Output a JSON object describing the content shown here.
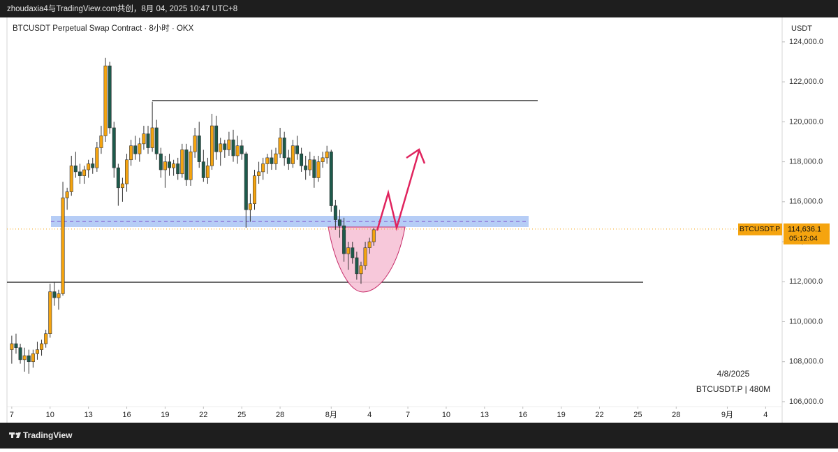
{
  "top_bar": {
    "text": "zhoudaxia4与TradingView.com共创，8月 04, 2025 10:47 UTC+8"
  },
  "footer": {
    "brand": "TradingView"
  },
  "chart_data": {
    "type": "candlestick",
    "title": "BTCUSDT Perpetual Swap Contract · 8小时 · OKX",
    "y_axis_label": "USDT",
    "watermark": [
      "4/8/2025",
      "BTCUSDT.P | 480M"
    ],
    "symbol_tag": "BTCUSDT.P",
    "last_price": {
      "value": 114636.1,
      "label": "114,636.1"
    },
    "countdown": "05:12:04",
    "up_color": "#f5a40f",
    "down_color": "#1d5a4b",
    "xlim": [
      -9,
      1447
    ],
    "xticks": [
      {
        "value": 0,
        "label": "7"
      },
      {
        "value": 72,
        "label": "10"
      },
      {
        "value": 144,
        "label": "13"
      },
      {
        "value": 216,
        "label": "16"
      },
      {
        "value": 288,
        "label": "19"
      },
      {
        "value": 360,
        "label": "22"
      },
      {
        "value": 432,
        "label": "25"
      },
      {
        "value": 504,
        "label": "28"
      },
      {
        "value": 600,
        "label": "8月"
      },
      {
        "value": 672,
        "label": "4"
      },
      {
        "value": 744,
        "label": "7"
      },
      {
        "value": 816,
        "label": "10"
      },
      {
        "value": 888,
        "label": "13"
      },
      {
        "value": 960,
        "label": "16"
      },
      {
        "value": 1032,
        "label": "19"
      },
      {
        "value": 1104,
        "label": "22"
      },
      {
        "value": 1176,
        "label": "25"
      },
      {
        "value": 1248,
        "label": "28"
      },
      {
        "value": 1344,
        "label": "9月"
      },
      {
        "value": 1416,
        "label": "4"
      }
    ],
    "ylim": [
      104950,
      125220
    ],
    "yticks": [
      {
        "value": 106000,
        "label": "106,000.0"
      },
      {
        "value": 108000,
        "label": "108,000.0"
      },
      {
        "value": 110000,
        "label": "110,000.0"
      },
      {
        "value": 112000,
        "label": "112,000.0"
      },
      {
        "value": 114000,
        "label": "114,000.0"
      },
      {
        "value": 116000,
        "label": "116,000.0"
      },
      {
        "value": 118000,
        "label": "118,000.0"
      },
      {
        "value": 120000,
        "label": "120,000.0"
      },
      {
        "value": 122000,
        "label": "122,000.0"
      },
      {
        "value": 124000,
        "label": "124,000.0"
      }
    ],
    "x": [
      0,
      8,
      16,
      24,
      32,
      40,
      48,
      56,
      64,
      72,
      80,
      88,
      96,
      104,
      112,
      120,
      128,
      136,
      144,
      152,
      160,
      168,
      176,
      184,
      192,
      200,
      208,
      216,
      224,
      232,
      240,
      248,
      256,
      264,
      272,
      280,
      288,
      296,
      304,
      312,
      320,
      328,
      336,
      344,
      352,
      360,
      368,
      376,
      384,
      392,
      400,
      408,
      416,
      424,
      432,
      440,
      448,
      456,
      464,
      472,
      480,
      488,
      496,
      504,
      512,
      520,
      528,
      536,
      544,
      552,
      560,
      568,
      576,
      584,
      592,
      600,
      608,
      616,
      624,
      632,
      640,
      648,
      656,
      664,
      672,
      680
    ],
    "ohlc": [
      [
        108600,
        109300,
        107900,
        108900
      ],
      [
        108900,
        109400,
        108400,
        108700
      ],
      [
        108700,
        108900,
        107900,
        108100
      ],
      [
        108100,
        108700,
        107500,
        108300
      ],
      [
        108300,
        108600,
        107400,
        108000
      ],
      [
        108000,
        108600,
        107700,
        108400
      ],
      [
        108400,
        109000,
        108100,
        108600
      ],
      [
        108600,
        109100,
        108300,
        108900
      ],
      [
        108900,
        109600,
        108700,
        109400
      ],
      [
        109400,
        111900,
        109200,
        111500
      ],
      [
        111500,
        112000,
        110800,
        111200
      ],
      [
        111200,
        111600,
        110600,
        111400
      ],
      [
        111400,
        117000,
        111300,
        116200
      ],
      [
        116200,
        116700,
        115600,
        116500
      ],
      [
        116500,
        118300,
        116300,
        117800
      ],
      [
        117800,
        118500,
        117200,
        117500
      ],
      [
        117500,
        117900,
        116900,
        117300
      ],
      [
        117300,
        117800,
        116900,
        117600
      ],
      [
        117600,
        118100,
        117200,
        117900
      ],
      [
        117900,
        118200,
        117400,
        117700
      ],
      [
        117700,
        119000,
        117500,
        118700
      ],
      [
        118700,
        119800,
        118400,
        119300
      ],
      [
        119300,
        123200,
        119000,
        122800
      ],
      [
        122800,
        123000,
        119400,
        119700
      ],
      [
        119700,
        120000,
        117200,
        117700
      ],
      [
        117700,
        117900,
        115800,
        116700
      ],
      [
        116700,
        117200,
        116000,
        116900
      ],
      [
        116900,
        118400,
        116500,
        118100
      ],
      [
        118100,
        119100,
        117800,
        118800
      ],
      [
        118800,
        119300,
        118100,
        118400
      ],
      [
        118400,
        119200,
        118000,
        118900
      ],
      [
        118900,
        119800,
        118600,
        119400
      ],
      [
        119400,
        119800,
        118400,
        118700
      ],
      [
        118700,
        121000,
        118500,
        119700
      ],
      [
        119700,
        120100,
        118100,
        118400
      ],
      [
        118400,
        118700,
        117200,
        117600
      ],
      [
        117600,
        118300,
        116700,
        118000
      ],
      [
        118000,
        118400,
        117300,
        117700
      ],
      [
        117700,
        118100,
        117300,
        117900
      ],
      [
        117900,
        118200,
        117100,
        117400
      ],
      [
        117400,
        118900,
        117200,
        118600
      ],
      [
        118600,
        118900,
        116800,
        117100
      ],
      [
        117100,
        118800,
        116800,
        118500
      ],
      [
        118500,
        119700,
        118200,
        119300
      ],
      [
        119300,
        120000,
        117700,
        118000
      ],
      [
        118000,
        118600,
        117000,
        117200
      ],
      [
        117200,
        118200,
        116900,
        117800
      ],
      [
        117800,
        120400,
        117600,
        119800
      ],
      [
        119800,
        120300,
        118100,
        118500
      ],
      [
        118500,
        119200,
        117800,
        118900
      ],
      [
        118900,
        119100,
        118200,
        118600
      ],
      [
        118600,
        119500,
        118300,
        119100
      ],
      [
        119100,
        119600,
        118000,
        118300
      ],
      [
        118300,
        119300,
        117900,
        118800
      ],
      [
        118800,
        119100,
        118100,
        118400
      ],
      [
        118400,
        118500,
        114700,
        115600
      ],
      [
        115600,
        116400,
        115000,
        115900
      ],
      [
        115900,
        117600,
        115600,
        117300
      ],
      [
        117300,
        118000,
        116900,
        117500
      ],
      [
        117500,
        118200,
        117100,
        117900
      ],
      [
        117900,
        118400,
        117400,
        118200
      ],
      [
        118200,
        118600,
        117600,
        117900
      ],
      [
        117900,
        118700,
        117600,
        118400
      ],
      [
        118400,
        119700,
        118200,
        119200
      ],
      [
        119200,
        119500,
        117800,
        118200
      ],
      [
        118200,
        118600,
        117600,
        117900
      ],
      [
        117900,
        119100,
        117700,
        118800
      ],
      [
        118800,
        119300,
        118100,
        118400
      ],
      [
        118400,
        118700,
        117500,
        117800
      ],
      [
        117800,
        118300,
        117100,
        117600
      ],
      [
        117600,
        118500,
        117300,
        118100
      ],
      [
        118100,
        118300,
        116700,
        117200
      ],
      [
        117200,
        118300,
        117000,
        118000
      ],
      [
        118000,
        118500,
        117700,
        118200
      ],
      [
        118200,
        118800,
        117900,
        118500
      ],
      [
        118500,
        118600,
        115500,
        115800
      ],
      [
        115800,
        116100,
        114600,
        115100
      ],
      [
        115100,
        115600,
        114200,
        114800
      ],
      [
        114800,
        115200,
        113000,
        113400
      ],
      [
        113400,
        114000,
        112600,
        113700
      ],
      [
        113700,
        114000,
        112900,
        113200
      ],
      [
        113200,
        113500,
        112100,
        112400
      ],
      [
        112400,
        113000,
        111900,
        112800
      ],
      [
        112800,
        114000,
        112600,
        113700
      ],
      [
        113700,
        114200,
        113400,
        114000
      ],
      [
        114000,
        114700,
        113800,
        114600
      ]
    ]
  }
}
